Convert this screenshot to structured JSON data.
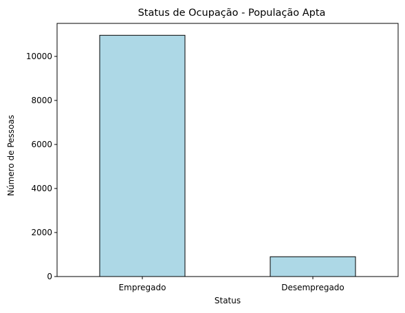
{
  "chart_data": {
    "type": "bar",
    "title": "Status de Ocupação - População Apta",
    "xlabel": "Status",
    "ylabel": "Número de Pessoas",
    "categories": [
      "Empregado",
      "Desempregado"
    ],
    "values": [
      10960,
      900
    ],
    "ylim": [
      0,
      11500
    ],
    "yticks": [
      0,
      2000,
      4000,
      6000,
      8000,
      10000
    ],
    "ytick_labels": [
      "0",
      "2000",
      "4000",
      "6000",
      "8000",
      "10000"
    ],
    "grid": false,
    "legend": "none",
    "colors": {
      "bar_fill": "#add8e6",
      "bar_edge": "#000000",
      "axis": "#000000"
    }
  }
}
